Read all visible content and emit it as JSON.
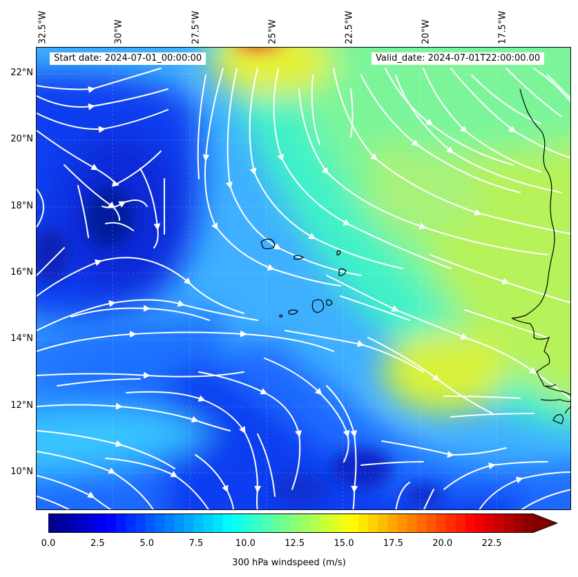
{
  "map": {
    "start_date_label": "Start date: 2024-07-01_00:00:00",
    "valid_date_label": "Valid_date: 2024-07-01T22:00:00.00",
    "longitude_labels": [
      "32.5°W",
      "30°W",
      "27.5°W",
      "25°W",
      "22.5°W",
      "20°W",
      "17.5°W"
    ],
    "latitude_labels": [
      "22°N",
      "20°N",
      "18°N",
      "16°N",
      "14°N",
      "12°N",
      "10°N"
    ],
    "field": "300 hPa windspeed",
    "overlay": "streamlines",
    "coastline_color": "#000000",
    "streamline_color": "#ffffff"
  },
  "colorbar": {
    "label": "300 hPa windspeed (m/s)",
    "tick_labels": [
      "0.0",
      "2.5",
      "5.0",
      "7.5",
      "10.0",
      "12.5",
      "15.0",
      "17.5",
      "20.0",
      "22.5"
    ],
    "colormap": "jet",
    "extend": "max"
  }
}
